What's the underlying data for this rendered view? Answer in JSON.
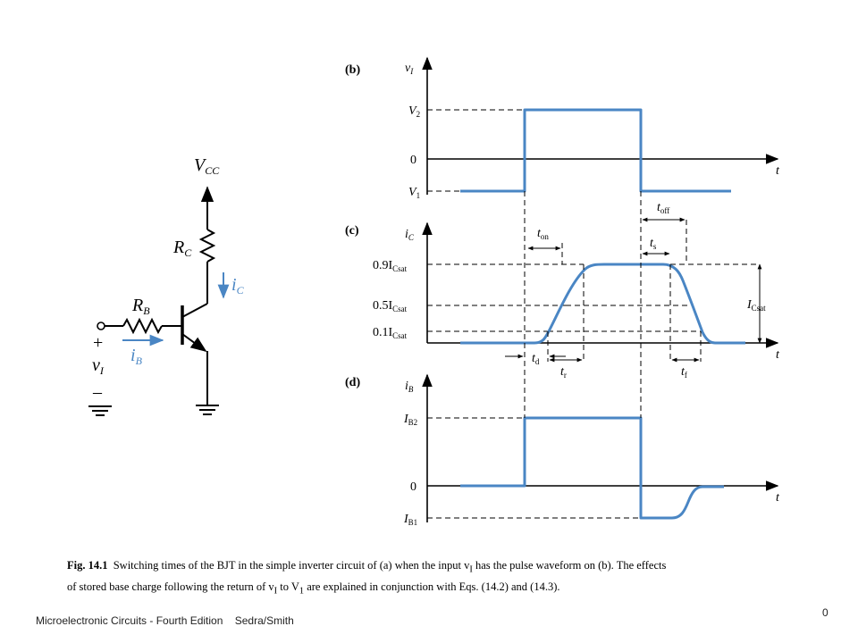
{
  "circuit": {
    "supply": {
      "main": "V",
      "sub": "CC"
    },
    "collector_resistor": {
      "main": "R",
      "sub": "C"
    },
    "base_resistor": {
      "main": "R",
      "sub": "B"
    },
    "collector_current": {
      "main": "i",
      "sub": "C"
    },
    "base_current": {
      "main": "i",
      "sub": "B"
    },
    "input_voltage": {
      "main": "v",
      "sub": "I"
    },
    "plus_sign": "+",
    "minus_sign": "–"
  },
  "panel_b": {
    "tag": "(b)",
    "y_label": {
      "main": "v",
      "sub": "I"
    },
    "x_label": "t",
    "levels": [
      {
        "main": "V",
        "sub": "2"
      },
      {
        "main": "0",
        "sub": ""
      },
      {
        "main": "V",
        "sub": "1"
      }
    ]
  },
  "panel_c": {
    "tag": "(c)",
    "y_label": {
      "main": "i",
      "sub": "C"
    },
    "x_label": "t",
    "levels": [
      {
        "main": "0.9I",
        "sub": "Csat"
      },
      {
        "main": "0.5I",
        "sub": "Csat"
      },
      {
        "main": "0.1I",
        "sub": "Csat"
      }
    ],
    "right_label": {
      "main": "I",
      "sub": "Csat"
    },
    "times": {
      "t_on": {
        "main": "t",
        "sub": "on"
      },
      "t_off": {
        "main": "t",
        "sub": "off"
      },
      "t_s": {
        "main": "t",
        "sub": "s"
      },
      "t_d": {
        "main": "t",
        "sub": "d"
      },
      "t_r": {
        "main": "t",
        "sub": "r"
      },
      "t_f": {
        "main": "t",
        "sub": "f"
      }
    }
  },
  "panel_d": {
    "tag": "(d)",
    "y_label": {
      "main": "i",
      "sub": "B"
    },
    "x_label": "t",
    "levels": [
      {
        "main": "I",
        "sub": "B2"
      },
      {
        "main": "0",
        "sub": ""
      },
      {
        "main": "I",
        "sub": "B1"
      }
    ]
  },
  "caption": {
    "fig_label": "Fig. 14.1",
    "line1": "Switching times of the BJT in the simple inverter circuit of (a) when the input v",
    "sub1": "I",
    "line1b": " has the pulse waveform on (b).  The effects",
    "line2": "of stored base charge following the return of v",
    "sub2": "I",
    "line2b": " to V",
    "sub3": "1",
    "line2c": " are explained in conjunction with Eqs. (14.2) and (14.3)."
  },
  "footer": {
    "book": "Microelectronic Circuits - Fourth Edition    Sedra/Smith",
    "page": "0"
  },
  "colors": {
    "waveform": "#4a86c4",
    "ink": "#000000"
  }
}
